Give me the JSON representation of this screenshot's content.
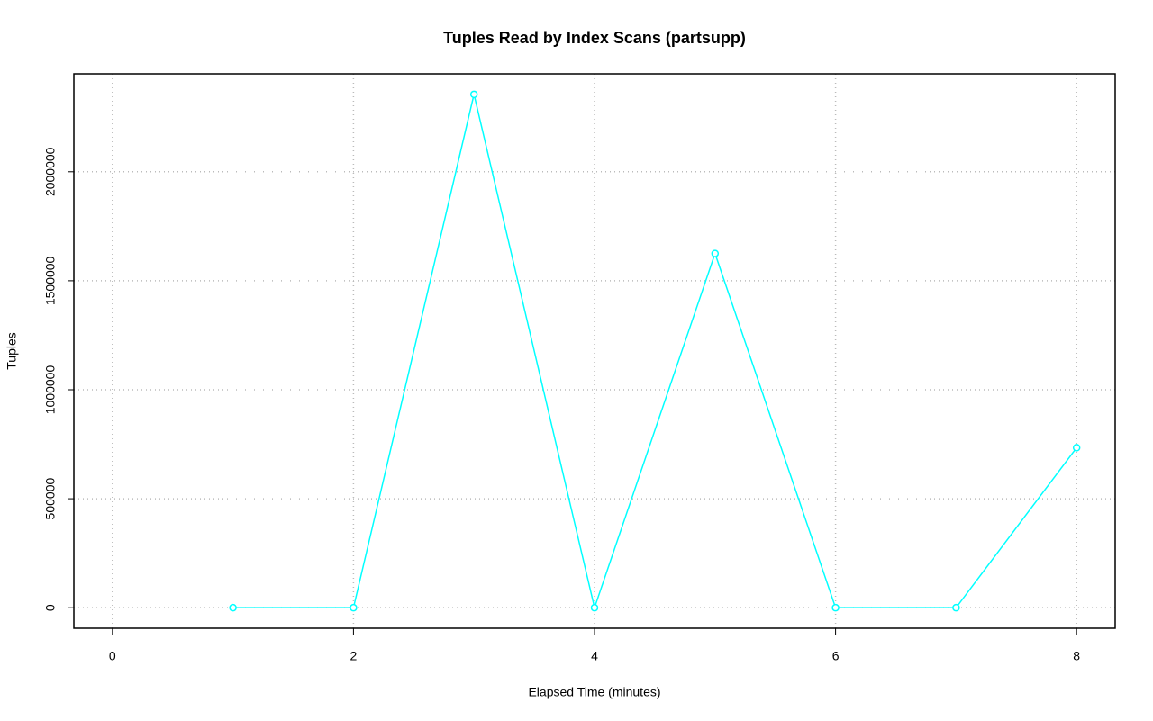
{
  "chart_data": {
    "type": "line",
    "title": "Tuples Read by Index Scans (partsupp)",
    "x_label": "Elapsed Time (minutes)",
    "y_label": "Tuples",
    "x": [
      1,
      2,
      3,
      4,
      5,
      6,
      7,
      8
    ],
    "series": [
      {
        "name": "partsupp",
        "color": "#00ffff",
        "values": [
          0,
          0,
          2355000,
          0,
          1625000,
          0,
          0,
          734000
        ]
      }
    ],
    "xlim": [
      -0.32,
      8.32
    ],
    "xticks": [
      0,
      2,
      4,
      6,
      8
    ],
    "ylim": [
      -94200,
      2449200
    ],
    "yticks": [
      0,
      500000,
      1000000,
      1500000,
      2000000
    ],
    "grid": true
  }
}
